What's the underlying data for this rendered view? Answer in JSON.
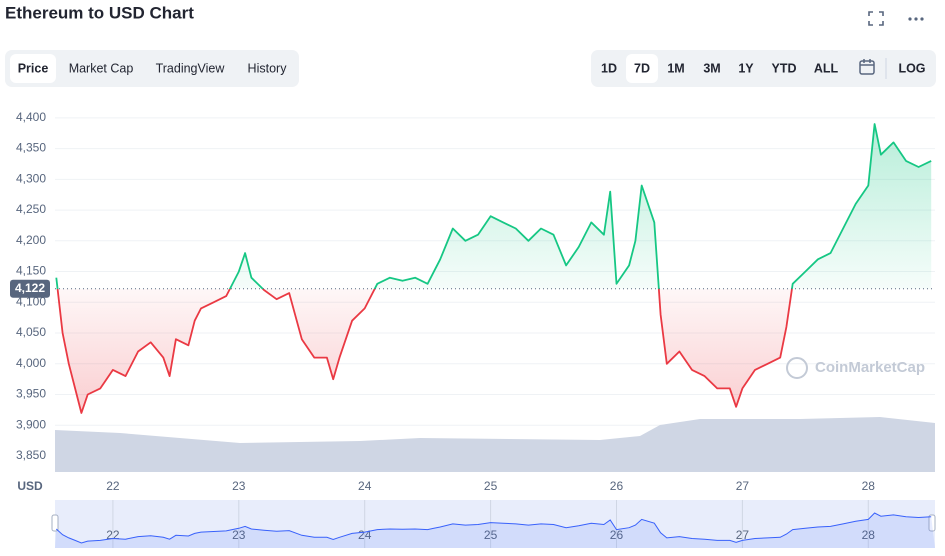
{
  "ui": {
    "title": "Ethereum to USD Chart",
    "tabs": [
      "Price",
      "Market Cap",
      "TradingView",
      "History"
    ],
    "ranges": [
      "1D",
      "7D",
      "1M",
      "3M",
      "1Y",
      "YTD",
      "ALL"
    ],
    "log": "LOG",
    "watermark": "CoinMarketCap"
  },
  "chart_data": {
    "type": "line",
    "y_label": "USD",
    "x": [
      21.55,
      21.6,
      21.65,
      21.7,
      21.75,
      21.8,
      21.9,
      22.0,
      22.1,
      22.2,
      22.3,
      22.4,
      22.45,
      22.5,
      22.6,
      22.65,
      22.7,
      22.8,
      22.9,
      23.0,
      23.05,
      23.1,
      23.2,
      23.3,
      23.4,
      23.5,
      23.6,
      23.7,
      23.75,
      23.8,
      23.9,
      24.0,
      24.1,
      24.2,
      24.3,
      24.4,
      24.5,
      24.55,
      24.6,
      24.7,
      24.8,
      24.9,
      25.0,
      25.1,
      25.2,
      25.3,
      25.4,
      25.5,
      25.6,
      25.7,
      25.8,
      25.9,
      25.95,
      26.0,
      26.1,
      26.15,
      26.2,
      26.3,
      26.35,
      26.4,
      26.5,
      26.6,
      26.7,
      26.8,
      26.9,
      26.95,
      27.0,
      27.1,
      27.2,
      27.3,
      27.35,
      27.4,
      27.5,
      27.6,
      27.7,
      27.8,
      27.9,
      28.0,
      28.05,
      28.1,
      28.2,
      28.3,
      28.4,
      28.5
    ],
    "series": [
      {
        "name": "Price",
        "color_up": "#16c784",
        "color_down": "#ea3943",
        "values": [
          4140,
          4050,
          4000,
          3960,
          3920,
          3950,
          3960,
          3990,
          3980,
          4020,
          4035,
          4010,
          3980,
          4040,
          4030,
          4070,
          4090,
          4100,
          4110,
          4150,
          4180,
          4140,
          4120,
          4105,
          4115,
          4040,
          4010,
          4010,
          3975,
          4010,
          4070,
          4090,
          4130,
          4140,
          4135,
          4140,
          4130,
          4150,
          4170,
          4220,
          4200,
          4210,
          4240,
          4230,
          4220,
          4200,
          4220,
          4210,
          4160,
          4190,
          4230,
          4210,
          4280,
          4130,
          4160,
          4200,
          4290,
          4230,
          4080,
          4000,
          4020,
          3990,
          3980,
          3960,
          3960,
          3930,
          3960,
          3990,
          4000,
          4010,
          4060,
          4130,
          4150,
          4170,
          4180,
          4220,
          4260,
          4290,
          4390,
          4340,
          4360,
          4330,
          4320,
          4330
        ]
      }
    ],
    "baseline": {
      "value": 4122,
      "label": "4,122"
    },
    "xlim": [
      21.54,
      28.53
    ],
    "xticks": [
      22,
      23,
      24,
      25,
      26,
      27,
      28
    ],
    "ylim": [
      3824,
      4429
    ],
    "yticks": [
      {
        "value": 3850,
        "label": "3,850"
      },
      {
        "value": 3900,
        "label": "3,900"
      },
      {
        "value": 3950,
        "label": "3,950"
      },
      {
        "value": 4000,
        "label": "4,000"
      },
      {
        "value": 4050,
        "label": "4,050"
      },
      {
        "value": 4100,
        "label": "4,100"
      },
      {
        "value": 4150,
        "label": "4,150"
      },
      {
        "value": 4200,
        "label": "4,200"
      },
      {
        "value": 4250,
        "label": "4,250"
      },
      {
        "value": 4300,
        "label": "4,300"
      },
      {
        "value": 4350,
        "label": "4,350"
      },
      {
        "value": 4400,
        "label": "4,400"
      }
    ],
    "grid": true
  }
}
